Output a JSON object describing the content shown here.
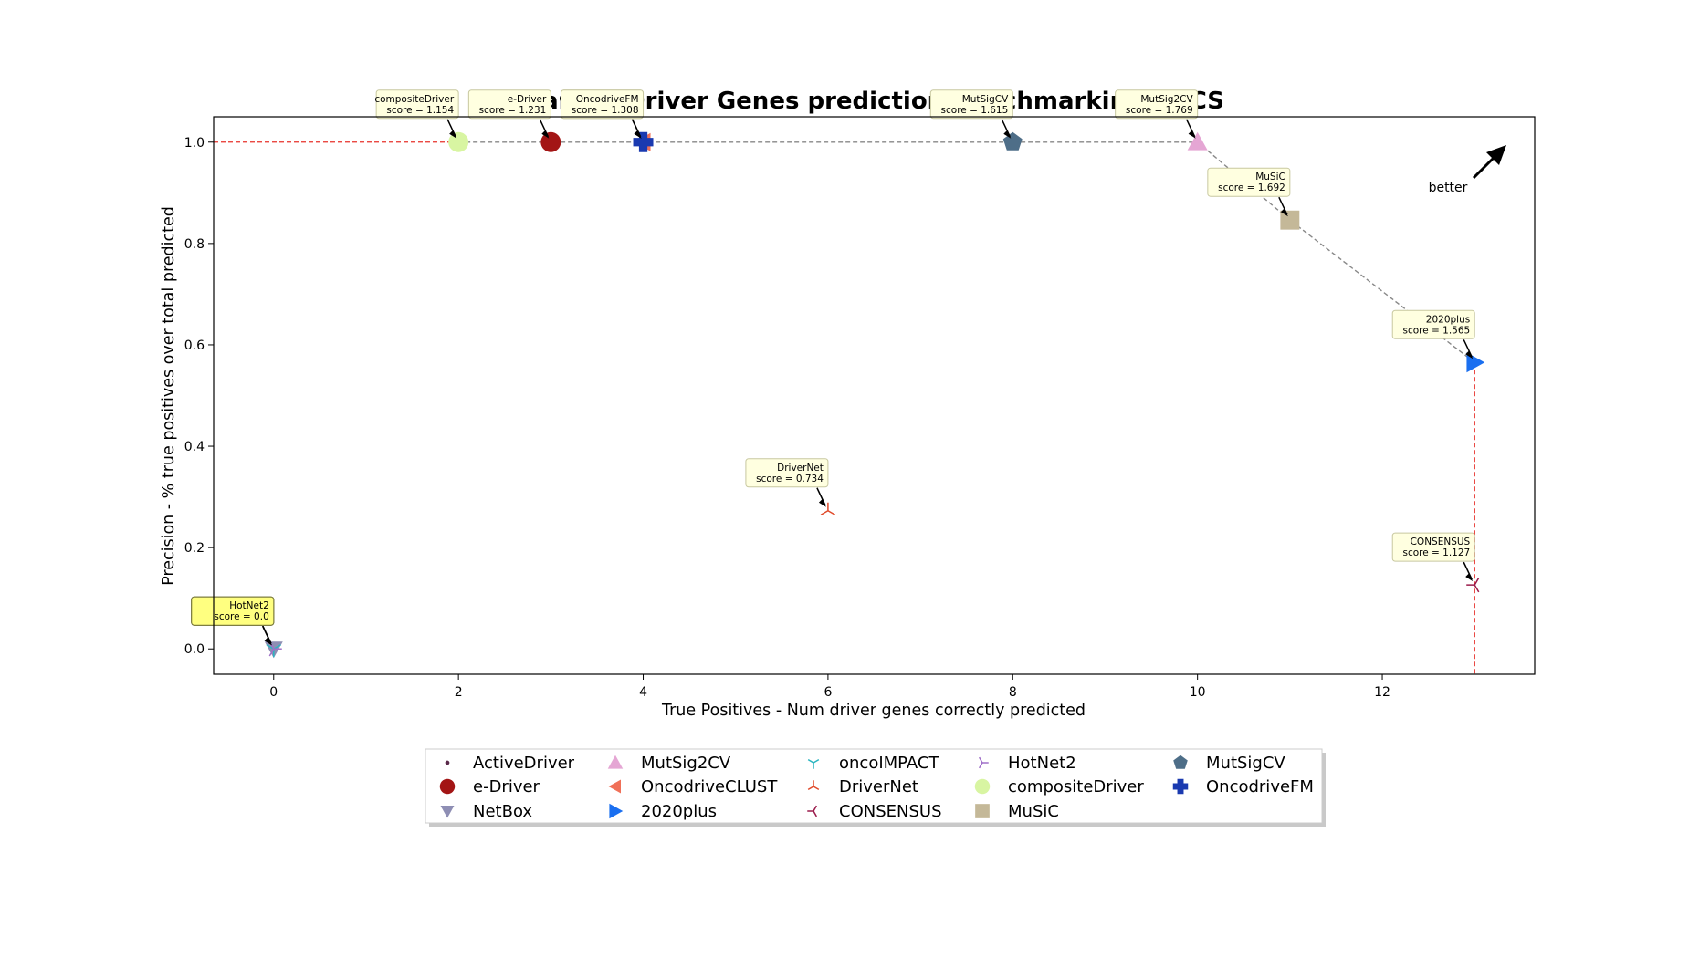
{
  "chart_data": {
    "type": "scatter",
    "title": "Cancer Driver Genes prediction benchmarking - UCS",
    "xlabel": "True Positives - Num driver genes correctly predicted",
    "ylabel": "Precision - % true positives over total predicted",
    "xlim": [
      -0.65,
      13.65
    ],
    "ylim": [
      -0.05,
      1.05
    ],
    "x_ticks": [
      "0",
      "2",
      "4",
      "6",
      "8",
      "10",
      "12"
    ],
    "y_ticks": [
      "0.0",
      "0.2",
      "0.4",
      "0.6",
      "0.8",
      "1.0"
    ],
    "grid": false,
    "legend_position": "bottom-center",
    "annotation_text": "better",
    "series": [
      {
        "name": "ActiveDriver",
        "x": 0,
        "y": 0.0,
        "score": "score = 0.0",
        "marker": "dot",
        "color": "#5a2a4a"
      },
      {
        "name": "e-Driver",
        "x": 3,
        "y": 1.0,
        "score": "score = 1.231",
        "marker": "circle",
        "color": "#a31515"
      },
      {
        "name": "NetBox",
        "x": 0,
        "y": 0.0,
        "score": "score = 0.0",
        "marker": "triangle-down",
        "color": "#8e8eb4"
      },
      {
        "name": "MutSig2CV",
        "x": 10,
        "y": 1.0,
        "score": "score = 1.769",
        "marker": "triangle-up",
        "color": "#e5a6d4"
      },
      {
        "name": "OncodriveCLUST",
        "x": 4,
        "y": 1.0,
        "score": "score = 1.308",
        "marker": "triangle-left",
        "color": "#f07058"
      },
      {
        "name": "2020plus",
        "x": 13,
        "y": 0.5652,
        "score": "score = 1.565",
        "marker": "triangle-right",
        "color": "#1a6ff0"
      },
      {
        "name": "oncoIMPACT",
        "x": 0,
        "y": 0.0,
        "score": "score = 0.0",
        "marker": "tri-down",
        "color": "#2bb5c0"
      },
      {
        "name": "DriverNet",
        "x": 6,
        "y": 0.2727,
        "score": "score = 0.734",
        "marker": "tri-up",
        "color": "#e04a2a"
      },
      {
        "name": "CONSENSUS",
        "x": 13,
        "y": 0.1262,
        "score": "score = 1.127",
        "marker": "tri-left",
        "color": "#9a1a4a"
      },
      {
        "name": "HotNet2",
        "x": 0,
        "y": 0.0,
        "score": "score = 0.0",
        "marker": "tri-right",
        "color": "#a070c8"
      },
      {
        "name": "compositeDriver",
        "x": 2,
        "y": 1.0,
        "score": "score = 1.154",
        "marker": "circle",
        "color": "#d8f5a2"
      },
      {
        "name": "MuSiC",
        "x": 11,
        "y": 0.8462,
        "score": "score = 1.692",
        "marker": "square",
        "color": "#c4b898"
      },
      {
        "name": "MutSigCV",
        "x": 8,
        "y": 1.0,
        "score": "score = 1.615",
        "marker": "pentagon",
        "color": "#4e6e88"
      },
      {
        "name": "OncodriveFM",
        "x": 4,
        "y": 1.0,
        "score": "score = 1.308",
        "marker": "plus",
        "color": "#1a3ab0"
      }
    ],
    "pareto_front": [
      [
        2,
        1.0
      ],
      [
        3,
        1.0
      ],
      [
        4,
        1.0
      ],
      [
        8,
        1.0
      ],
      [
        10,
        1.0
      ],
      [
        11,
        0.8462
      ],
      [
        13,
        0.5652
      ]
    ],
    "reference_line_color": "#e8302a"
  }
}
